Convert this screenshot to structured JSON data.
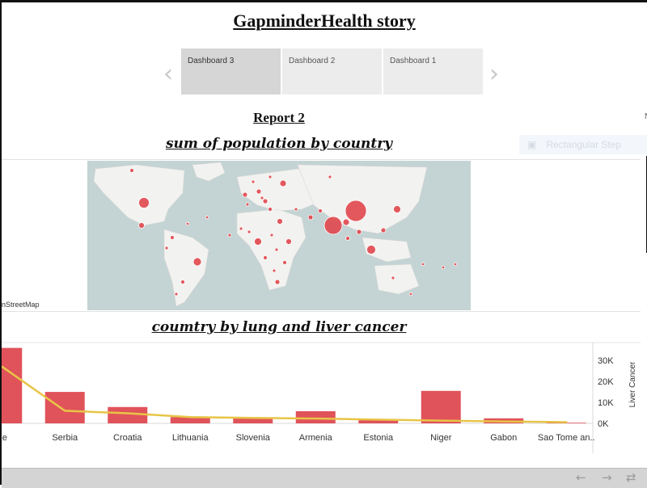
{
  "story": {
    "title": "GapminderHealth story",
    "prev_icon": "chevron-left-icon",
    "next_icon": "chevron-right-icon",
    "tabs": [
      {
        "label": "Dashboard 3",
        "active": true
      },
      {
        "label": "Dashboard 2",
        "active": false
      },
      {
        "label": "Dashboard 1",
        "active": false
      }
    ]
  },
  "report": {
    "title": "Report 2",
    "map_title": "sum of population by country",
    "chart_title": "coumtry by lung and liver cancer",
    "map_credit": "nStreetMap",
    "ghost_button": "Rectangular Step",
    "right_edge_label": "N"
  },
  "map": {
    "land_color": "#f2f2f0",
    "water_color": "#c4d3d3",
    "bubble_color": "#e0474c"
  },
  "chart_data": {
    "type": "bar",
    "categories": [
      "ne",
      "Serbia",
      "Croatia",
      "Lithuania",
      "Slovenia",
      "Armenia",
      "Estonia",
      "Niger",
      "Gabon",
      "Sao Tome an.."
    ],
    "series": [
      {
        "type": "bar",
        "color": "#e0535a",
        "values": [
          36000,
          15000,
          7800,
          3000,
          2700,
          5800,
          1500,
          15500,
          2400,
          300
        ]
      },
      {
        "type": "line",
        "color": "#e8c547",
        "values": [
          27000,
          6000,
          4800,
          3000,
          2600,
          2300,
          1800,
          1300,
          900,
          600
        ]
      }
    ],
    "ylabel": "Liver Cancer",
    "ylim": [
      0,
      37000
    ],
    "yticks": [
      {
        "value": 0,
        "label": "0K"
      },
      {
        "value": 10000,
        "label": "10K"
      },
      {
        "value": 20000,
        "label": "20K"
      },
      {
        "value": 30000,
        "label": "30K"
      }
    ],
    "grid": false
  },
  "bottom_bar": {
    "icons": [
      "arrow-back-icon",
      "arrow-forward-icon",
      "revert-icon"
    ]
  }
}
